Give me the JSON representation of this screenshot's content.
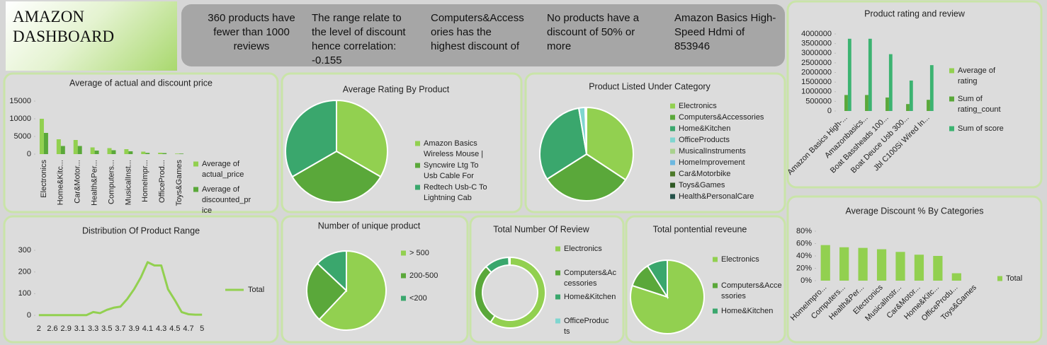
{
  "header": {
    "title": "AMAZON DASHBOARD"
  },
  "kpis": [
    "360 products have fewer than 1000 reviews",
    "The range relate to the level of discount hence correlation: -0.155",
    "Computers&Accessories has the highest discount of",
    "No products have a discount of 50% or more",
    "Amazon Basics High-Speed Hdmi  of 853946"
  ],
  "chart_data": [
    {
      "type": "bar",
      "title": "Product rating and review",
      "categories": [
        "Amazon Basics High-...",
        "Amazonbasics...",
        "Boat Bassheads 100...",
        "Boat Deuce Usb 300...",
        "Jbl C100Si Wired In..."
      ],
      "series": [
        {
          "name": "Average of rating",
          "color": "#92d050",
          "values": [
            4.2,
            4.2,
            4.1,
            4.2,
            4.1
          ]
        },
        {
          "name": "Sum of rating_count",
          "color": "#5aa83a",
          "values": [
            830000,
            830000,
            700000,
            360000,
            580000
          ]
        },
        {
          "name": "Sum of score",
          "color": "#3cb371",
          "values": [
            3750000,
            3750000,
            2950000,
            1580000,
            2380000
          ]
        }
      ],
      "ylim": [
        0,
        4000000
      ],
      "yticks": [
        0,
        500000,
        1000000,
        1500000,
        2000000,
        2500000,
        3000000,
        3500000,
        4000000
      ],
      "grid": false,
      "legend": "right"
    },
    {
      "type": "bar",
      "title": "Average of actual and discount price",
      "categories": [
        "Electronics",
        "Home&Kitc...",
        "Car&Motor...",
        "Health&Per...",
        "Computers...",
        "MusicalInst...",
        "HomeImpr...",
        "OfficeProd...",
        "Toys&Games"
      ],
      "series": [
        {
          "name": "Average of actual_price",
          "color": "#92d050",
          "values": [
            10000,
            4200,
            4000,
            1900,
            1700,
            1400,
            700,
            400,
            150
          ]
        },
        {
          "name": "Average of discounted_price",
          "color": "#5aa83a",
          "values": [
            6000,
            2300,
            2300,
            1000,
            1100,
            800,
            350,
            300,
            150
          ]
        }
      ],
      "ylim": [
        0,
        15000
      ],
      "yticks": [
        0,
        5000,
        10000,
        15000
      ],
      "grid": false,
      "legend": "right"
    },
    {
      "type": "pie",
      "title": "Average Rating By Product",
      "categories": [
        "Amazon Basics Wireless Mouse | ",
        "Syncwire Ltg To Usb Cable For",
        "Redtech Usb-C To Lightning Cab"
      ],
      "values": [
        4.5,
        4.5,
        4.5
      ],
      "colors": [
        "#92d050",
        "#5aa83a",
        "#3aa76d"
      ],
      "legend": "right"
    },
    {
      "type": "pie",
      "title": "Product Listed Under Category",
      "categories": [
        "Electronics",
        "Computers&Accessories",
        "Home&Kitchen",
        "OfficeProducts",
        "MusicalInstruments",
        "HomeImprovement",
        "Car&Motorbike",
        "Toys&Games",
        "Health&PersonalCare"
      ],
      "values": [
        490,
        453,
        448,
        31,
        2,
        2,
        1,
        1,
        1
      ],
      "colors": [
        "#92d050",
        "#5aa83a",
        "#3aa76d",
        "#7fd6d0",
        "#a9d18e",
        "#6cb8e0",
        "#4d7a2a",
        "#2f5a25",
        "#24524a"
      ],
      "legend": "right"
    },
    {
      "type": "line",
      "title": "Distribution Of Product Range",
      "categories": [
        "2",
        null,
        "2.6",
        null,
        "2.9",
        null,
        "3.1",
        null,
        "3.3",
        null,
        "3.5",
        null,
        "3.7",
        null,
        "3.9",
        null,
        "4.1",
        null,
        "4.3",
        null,
        "4.5",
        null,
        "4.7",
        null,
        "5"
      ],
      "series": [
        {
          "name": "Total",
          "color": "#92d050",
          "values": [
            1,
            1,
            1,
            1,
            1,
            1,
            1,
            1,
            15,
            10,
            25,
            35,
            40,
            75,
            120,
            175,
            245,
            230,
            230,
            120,
            70,
            15,
            5,
            3,
            3
          ]
        }
      ],
      "ylim": [
        0,
        300
      ],
      "yticks": [
        0,
        100,
        200,
        300
      ],
      "grid": false,
      "legend": "right"
    },
    {
      "type": "pie",
      "title": "Number of unique product",
      "categories": [
        "> 500",
        "200-500",
        "<200"
      ],
      "values": [
        62,
        25,
        13
      ],
      "colors": [
        "#92d050",
        "#5aa83a",
        "#3aa76d"
      ],
      "legend": "right"
    },
    {
      "type": "doughnut",
      "title": "Total Number Of Review",
      "categories": [
        "Electronics",
        "Computers&Accessories",
        "Home&Kitchen",
        "OfficeProducts"
      ],
      "values": [
        15800000,
        7700000,
        3000000,
        150000
      ],
      "colors": [
        "#92d050",
        "#5aa83a",
        "#3aa76d",
        "#7fd6d0"
      ],
      "legend": "right"
    },
    {
      "type": "pie",
      "title": "Total pontential reveune",
      "categories": [
        "Electronics",
        "Computers&Accessories",
        "Home&Kitchen"
      ],
      "values": [
        80,
        11,
        9
      ],
      "colors": [
        "#92d050",
        "#5aa83a",
        "#3aa76d"
      ],
      "legend": "right"
    },
    {
      "type": "bar",
      "title": "Average Discount % By Categories",
      "categories": [
        "HomeImpro...",
        "Computers...",
        "Health&Per...",
        "Electronics",
        "MusicalInstr...",
        "Car&Motor...",
        "Home&Kitc...",
        "OfficeProdu...",
        "Toys&Games"
      ],
      "series": [
        {
          "name": "Total",
          "color": "#92d050",
          "values": [
            57.5,
            54,
            53,
            50.8,
            46.5,
            42,
            40,
            12,
            0
          ]
        }
      ],
      "ylim": [
        0,
        80
      ],
      "yticks": [
        {
          "value": 0,
          "label": "0%"
        },
        {
          "value": 20,
          "label": "20%"
        },
        {
          "value": 40,
          "label": "40%"
        },
        {
          "value": 60,
          "label": "60%"
        },
        {
          "value": 80,
          "label": "80%"
        }
      ],
      "grid": false,
      "legend": "right"
    }
  ]
}
